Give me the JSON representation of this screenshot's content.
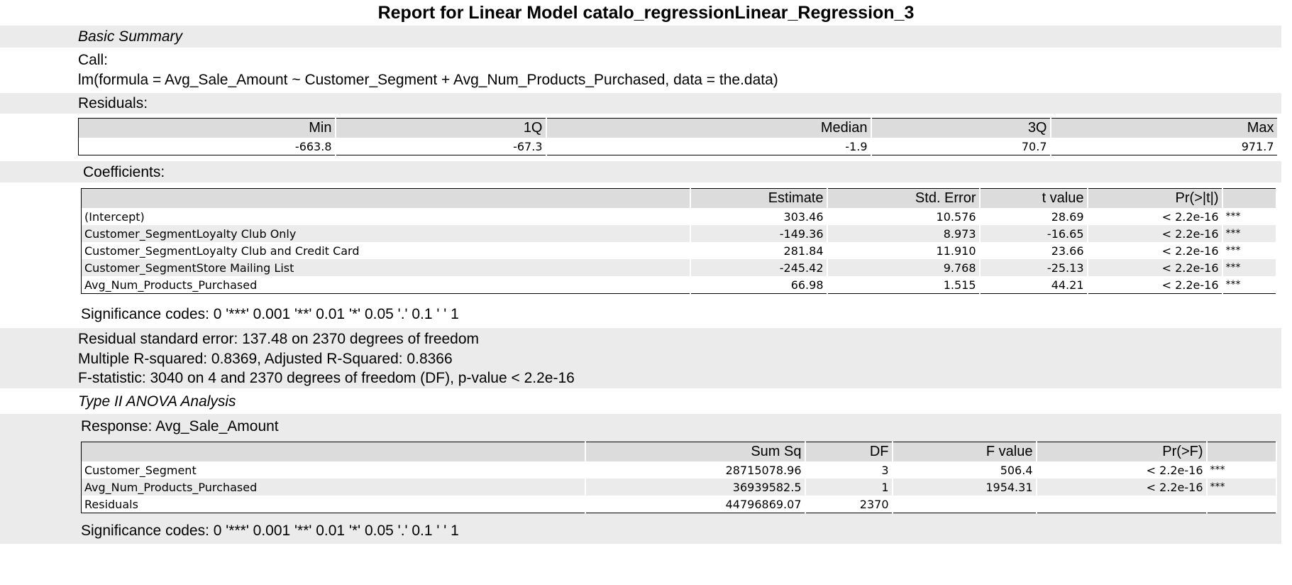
{
  "title": "Report for Linear Model catalo_regressionLinear_Regression_3",
  "basic_summary": {
    "heading": "Basic Summary",
    "call_label": "Call:",
    "call_formula": "lm(formula = Avg_Sale_Amount ~ Customer_Segment + Avg_Num_Products_Purchased, data = the.data)"
  },
  "residuals": {
    "heading": "Residuals:",
    "headers": [
      "Min",
      "1Q",
      "Median",
      "3Q",
      "Max"
    ],
    "values": [
      "-663.8",
      "-67.3",
      "-1.9",
      "70.7",
      "971.7"
    ]
  },
  "coefficients": {
    "heading": "Coefficients:",
    "headers": [
      "",
      "Estimate",
      "Std. Error",
      "t value",
      "Pr(>|t|)",
      ""
    ],
    "rows": [
      [
        "(Intercept)",
        "303.46",
        "10.576",
        "28.69",
        "< 2.2e-16",
        "***"
      ],
      [
        "Customer_SegmentLoyalty Club Only",
        "-149.36",
        "8.973",
        "-16.65",
        "< 2.2e-16",
        "***"
      ],
      [
        "Customer_SegmentLoyalty Club and Credit Card",
        "281.84",
        "11.910",
        "23.66",
        "< 2.2e-16",
        "***"
      ],
      [
        "Customer_SegmentStore Mailing List",
        "-245.42",
        "9.768",
        "-25.13",
        "< 2.2e-16",
        "***"
      ],
      [
        "Avg_Num_Products_Purchased",
        "66.98",
        "1.515",
        "44.21",
        "< 2.2e-16",
        "***"
      ]
    ],
    "significance": "Significance codes: 0 '***' 0.001 '**' 0.01 '*' 0.05 '.' 0.1 ' ' 1"
  },
  "fit_stats": {
    "line1": "Residual standard error: 137.48 on 2370 degrees of freedom",
    "line2": "Multiple R-squared: 0.8369, Adjusted R-Squared: 0.8366",
    "line3": "F-statistic: 3040 on 4 and 2370 degrees of freedom (DF), p-value < 2.2e-16"
  },
  "anova": {
    "heading": "Type II ANOVA Analysis",
    "response": "Response: Avg_Sale_Amount",
    "headers": [
      "",
      "Sum Sq",
      "DF",
      "F value",
      "Pr(>F)",
      ""
    ],
    "rows": [
      [
        "Customer_Segment",
        "28715078.96",
        "3",
        "506.4",
        "< 2.2e-16",
        "***"
      ],
      [
        "Avg_Num_Products_Purchased",
        "36939582.5",
        "1",
        "1954.31",
        "< 2.2e-16",
        "***"
      ],
      [
        "Residuals",
        "44796869.07",
        "2370",
        "",
        "",
        ""
      ]
    ],
    "significance": "Significance codes: 0 '***' 0.001 '**' 0.01 '*' 0.05 '.' 0.1 ' ' 1"
  }
}
